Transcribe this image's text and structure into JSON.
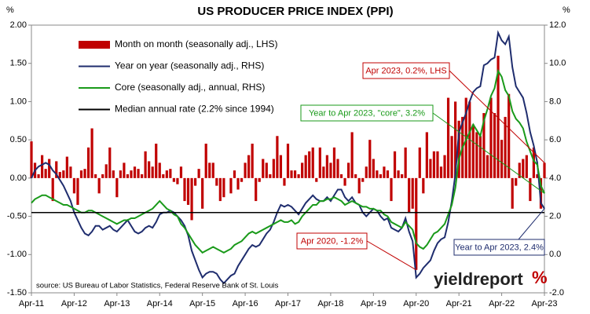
{
  "chart_data": {
    "type": "bar",
    "title": "US PRODUCER PRICE INDEX (PPI)",
    "y_unit": "%",
    "y2_unit": "%",
    "categories": [
      "Apr-11",
      null,
      null,
      null,
      null,
      null,
      null,
      null,
      null,
      null,
      null,
      null,
      "Apr-12",
      null,
      null,
      null,
      null,
      null,
      null,
      null,
      null,
      null,
      null,
      null,
      "Apr-13",
      null,
      null,
      null,
      null,
      null,
      null,
      null,
      null,
      null,
      null,
      null,
      "Apr-14",
      null,
      null,
      null,
      null,
      null,
      null,
      null,
      null,
      null,
      null,
      null,
      "Apr-15",
      null,
      null,
      null,
      null,
      null,
      null,
      null,
      null,
      null,
      null,
      null,
      "Apr-16",
      null,
      null,
      null,
      null,
      null,
      null,
      null,
      null,
      null,
      null,
      null,
      "Apr-17",
      null,
      null,
      null,
      null,
      null,
      null,
      null,
      null,
      null,
      null,
      null,
      "Apr-18",
      null,
      null,
      null,
      null,
      null,
      null,
      null,
      null,
      null,
      null,
      null,
      "Apr-19",
      null,
      null,
      null,
      null,
      null,
      null,
      null,
      null,
      null,
      null,
      null,
      "Apr-20",
      null,
      null,
      null,
      null,
      null,
      null,
      null,
      null,
      null,
      null,
      null,
      "Apr-21",
      null,
      null,
      null,
      null,
      null,
      null,
      null,
      null,
      null,
      null,
      null,
      "Apr-22",
      null,
      null,
      null,
      null,
      null,
      null,
      null,
      null,
      null,
      null,
      null,
      "Apr-23"
    ],
    "series": [
      {
        "name": "Month on month (seasonally adj., LHS)",
        "type": "bar",
        "color": "#c00000",
        "values": [
          0.48,
          0.2,
          0.05,
          0.3,
          0.12,
          0.25,
          -0.3,
          0.22,
          0.08,
          0.1,
          0.28,
          0.15,
          -0.2,
          -0.35,
          0.1,
          0.12,
          0.4,
          0.65,
          0.05,
          -0.2,
          0.05,
          0.18,
          0.4,
          0.1,
          -0.25,
          0.1,
          0.2,
          0.05,
          0.1,
          0.15,
          0.12,
          0.05,
          0.35,
          0.22,
          0.15,
          0.45,
          0.2,
          0.05,
          0.1,
          0.12,
          -0.05,
          -0.08,
          0.15,
          -0.3,
          -0.35,
          -0.55,
          -0.1,
          0.12,
          -0.4,
          0.45,
          0.2,
          0.2,
          -0.1,
          -0.3,
          -0.25,
          0.0,
          -0.2,
          0.1,
          -0.15,
          -0.05,
          0.2,
          0.3,
          0.45,
          -0.3,
          -0.05,
          0.25,
          0.2,
          0.05,
          0.25,
          0.55,
          0.3,
          -0.1,
          0.45,
          0.1,
          0.1,
          0.05,
          0.2,
          0.3,
          0.35,
          0.4,
          -0.05,
          0.4,
          0.15,
          0.3,
          0.2,
          0.4,
          0.25,
          0.05,
          -0.1,
          0.2,
          0.6,
          0.05,
          -0.2,
          -0.05,
          0.15,
          0.5,
          0.25,
          0.1,
          0.05,
          0.15,
          0.1,
          -0.3,
          0.35,
          0.1,
          0.05,
          0.4,
          -0.45,
          -0.4,
          -1.2,
          0.4,
          -0.2,
          0.6,
          0.25,
          0.35,
          0.35,
          0.15,
          0.3,
          1.05,
          0.55,
          1.0,
          0.75,
          0.8,
          1.05,
          1.0,
          0.7,
          0.6,
          0.55,
          0.85,
          0.3,
          1.05,
          0.85,
          1.6,
          0.5,
          0.8,
          1.1,
          -0.4,
          -0.1,
          0.2,
          0.25,
          0.3,
          -0.3,
          0.4,
          0.05,
          -0.4,
          0.2
        ]
      },
      {
        "name": "Year on year (seasonally adj., RHS)",
        "type": "line",
        "axis": "y2",
        "color": "#1f2d6e",
        "values": [
          4.0,
          4.4,
          4.6,
          4.7,
          4.8,
          4.7,
          4.4,
          4.2,
          3.9,
          3.6,
          3.2,
          2.8,
          2.2,
          1.8,
          1.4,
          1.1,
          1.0,
          1.2,
          1.5,
          1.5,
          1.3,
          1.4,
          1.5,
          1.3,
          1.2,
          1.4,
          1.6,
          1.8,
          1.5,
          1.2,
          1.1,
          1.2,
          1.4,
          1.5,
          1.4,
          1.7,
          2.1,
          2.2,
          2.2,
          2.3,
          2.2,
          2.0,
          1.8,
          1.5,
          1.0,
          0.2,
          -0.3,
          -0.8,
          -1.2,
          -1.0,
          -0.9,
          -0.9,
          -1.0,
          -1.3,
          -1.5,
          -1.3,
          -1.1,
          -1.0,
          -0.6,
          -0.3,
          0.0,
          0.3,
          0.5,
          0.4,
          0.5,
          0.8,
          1.1,
          1.3,
          1.7,
          2.2,
          2.6,
          2.5,
          2.6,
          2.5,
          2.3,
          2.1,
          2.4,
          2.7,
          2.9,
          3.1,
          2.9,
          2.8,
          2.8,
          3.0,
          2.8,
          3.1,
          3.4,
          3.4,
          3.0,
          2.8,
          3.0,
          2.7,
          2.6,
          2.2,
          2.0,
          2.2,
          2.4,
          2.3,
          2.0,
          1.8,
          1.9,
          1.4,
          1.3,
          1.2,
          1.4,
          1.9,
          1.2,
          0.7,
          -1.2,
          -1.0,
          -0.7,
          -0.5,
          -0.3,
          0.2,
          0.6,
          0.8,
          0.9,
          1.7,
          2.8,
          4.2,
          6.4,
          6.9,
          7.4,
          8.0,
          8.5,
          8.7,
          8.8,
          9.9,
          10.0,
          10.2,
          10.3,
          11.6,
          11.2,
          11.0,
          11.4,
          9.8,
          8.8,
          8.5,
          8.2,
          7.4,
          6.4,
          5.7,
          4.8,
          2.7,
          2.4
        ]
      },
      {
        "name": "Core (seasonally adj., annual, RHS)",
        "type": "line",
        "axis": "y2",
        "color": "#1a9a1a",
        "values": [
          2.7,
          2.9,
          3.0,
          3.1,
          3.1,
          3.0,
          2.9,
          2.8,
          2.7,
          2.6,
          2.6,
          2.5,
          2.4,
          2.3,
          2.2,
          2.2,
          2.3,
          2.3,
          2.2,
          2.1,
          2.0,
          1.9,
          1.8,
          1.7,
          1.6,
          1.7,
          1.8,
          1.8,
          1.9,
          1.9,
          2.0,
          2.1,
          2.2,
          2.3,
          2.4,
          2.6,
          2.8,
          2.6,
          2.4,
          2.3,
          2.1,
          2.0,
          1.6,
          1.4,
          1.1,
          0.8,
          0.5,
          0.3,
          0.1,
          0.2,
          0.3,
          0.4,
          0.3,
          0.2,
          0.1,
          0.2,
          0.3,
          0.5,
          0.6,
          0.7,
          0.9,
          1.1,
          1.2,
          1.1,
          1.2,
          1.3,
          1.4,
          1.5,
          1.6,
          1.7,
          1.8,
          1.7,
          1.7,
          1.8,
          1.6,
          1.7,
          2.0,
          2.2,
          2.4,
          2.6,
          2.6,
          2.8,
          2.8,
          2.9,
          2.9,
          3.0,
          2.9,
          2.8,
          2.6,
          2.7,
          2.8,
          2.7,
          2.6,
          2.5,
          2.5,
          2.4,
          2.4,
          2.3,
          2.3,
          2.1,
          2.0,
          1.7,
          1.6,
          1.5,
          1.4,
          1.7,
          1.5,
          1.3,
          0.6,
          0.4,
          0.3,
          0.5,
          0.8,
          1.1,
          1.2,
          1.4,
          1.6,
          2.1,
          2.6,
          3.5,
          5.0,
          5.6,
          6.0,
          6.4,
          6.8,
          6.5,
          6.2,
          7.0,
          7.6,
          8.3,
          8.7,
          9.6,
          9.3,
          8.6,
          8.3,
          7.5,
          7.1,
          6.9,
          6.6,
          5.9,
          5.4,
          4.9,
          4.7,
          3.6,
          3.2
        ]
      }
    ],
    "median": {
      "name": "Median annual rate (2.2% since 1994)",
      "value": 2.2,
      "axis": "y2",
      "color": "#000000"
    },
    "ylim": [
      -1.5,
      2
    ],
    "yticks": [
      {
        "value": 2,
        "label": "2.00"
      },
      {
        "value": 1.5,
        "label": "1.50"
      },
      {
        "value": 1,
        "label": "1.00"
      },
      {
        "value": 0.5,
        "label": "0.50"
      },
      {
        "value": 0,
        "label": "0.00"
      },
      {
        "value": -0.5,
        "label": "-0.50"
      },
      {
        "value": -1,
        "label": "-1.00"
      },
      {
        "value": -1.5,
        "label": "-1.50"
      }
    ],
    "y2lim": [
      -2,
      12
    ],
    "y2ticks": [
      {
        "value": 12,
        "label": "12.0"
      },
      {
        "value": 10,
        "label": "10.0"
      },
      {
        "value": 8,
        "label": "8.0"
      },
      {
        "value": 6,
        "label": "6.0"
      },
      {
        "value": 4,
        "label": "4.0"
      },
      {
        "value": 2,
        "label": "2.0"
      },
      {
        "value": 0,
        "label": "0.0"
      },
      {
        "value": -2,
        "label": "-2.0"
      }
    ],
    "annotations": [
      {
        "text": "Apr 2023, 0.2%, LHS",
        "color": "#c00000"
      },
      {
        "text": "Year to Apr 2023, \"core\", 3.2%",
        "color": "#1a9a1a"
      },
      {
        "text": "Apr 2020, -1.2%",
        "color": "#c00000"
      },
      {
        "text": "Year to Apr 2023, 2.4%",
        "color": "#1f2d6e"
      }
    ],
    "source": "source: US Bureau of Labor Statistics, Federal Reserve Bank of St. Louis",
    "brand": "yieldreport",
    "brand_mark": "%"
  }
}
